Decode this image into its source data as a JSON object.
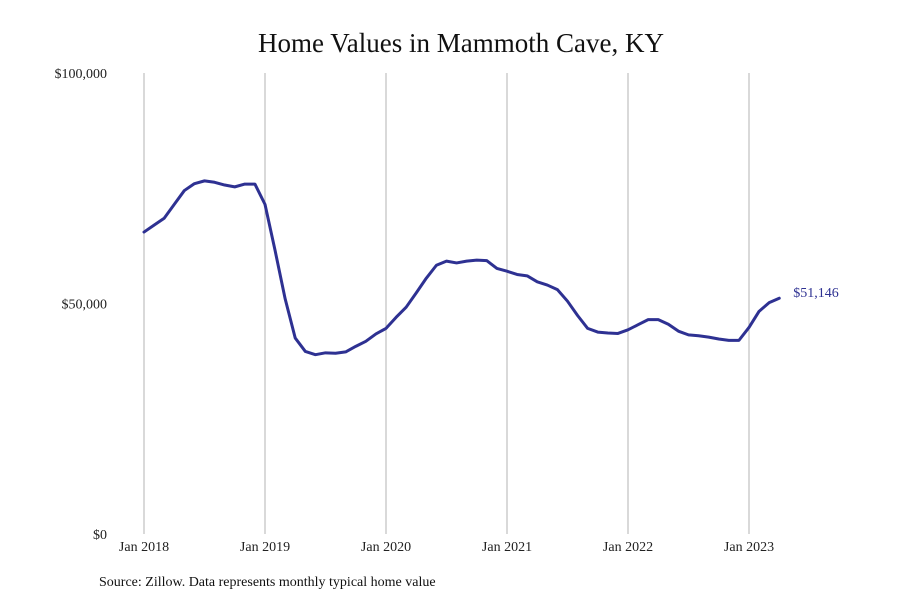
{
  "chart_data": {
    "type": "line",
    "title": "Home Values in Mammoth Cave, KY",
    "source_note": "Source: Zillow. Data represents monthly typical home value",
    "ylim": [
      0,
      100000
    ],
    "yticks": [
      0,
      50000,
      100000
    ],
    "ytick_labels": [
      "$0",
      "$50,000",
      "$100,000"
    ],
    "xlim": [
      "2018-01",
      "2023-12"
    ],
    "xticks": [
      "2018-01",
      "2019-01",
      "2020-01",
      "2021-01",
      "2022-01",
      "2023-01"
    ],
    "xtick_labels": [
      "Jan 2018",
      "Jan 2019",
      "Jan 2020",
      "Jan 2021",
      "Jan 2022",
      "Jan 2023"
    ],
    "grid": "vertical",
    "legend": "none",
    "series": [
      {
        "color": "#2e3192",
        "end_label": "$51,146",
        "x": [
          "2018-01",
          "2018-02",
          "2018-03",
          "2018-04",
          "2018-05",
          "2018-06",
          "2018-07",
          "2018-08",
          "2018-09",
          "2018-10",
          "2018-11",
          "2018-12",
          "2019-01",
          "2019-02",
          "2019-03",
          "2019-04",
          "2019-05",
          "2019-06",
          "2019-07",
          "2019-08",
          "2019-09",
          "2019-10",
          "2019-11",
          "2019-12",
          "2020-01",
          "2020-02",
          "2020-03",
          "2020-04",
          "2020-05",
          "2020-06",
          "2020-07",
          "2020-08",
          "2020-09",
          "2020-10",
          "2020-11",
          "2020-12",
          "2021-01",
          "2021-02",
          "2021-03",
          "2021-04",
          "2021-05",
          "2021-06",
          "2021-07",
          "2021-08",
          "2021-09",
          "2021-10",
          "2021-11",
          "2021-12",
          "2022-01",
          "2022-02",
          "2022-03",
          "2022-04",
          "2022-05",
          "2022-06",
          "2022-07",
          "2022-08",
          "2022-09",
          "2022-10",
          "2022-11",
          "2022-12",
          "2023-01",
          "2023-02",
          "2023-03",
          "2023-04"
        ],
        "values": [
          65500,
          67000,
          68500,
          71500,
          74500,
          76000,
          76600,
          76300,
          75700,
          75300,
          75900,
          75900,
          71500,
          61500,
          51000,
          42500,
          39600,
          38900,
          39300,
          39200,
          39500,
          40700,
          41800,
          43400,
          44600,
          47000,
          49200,
          52300,
          55500,
          58300,
          59200,
          58800,
          59200,
          59400,
          59300,
          57600,
          57000,
          56300,
          56000,
          54700,
          54000,
          53000,
          50500,
          47400,
          44600,
          43800,
          43600,
          43500,
          44300,
          45400,
          46500,
          46500,
          45500,
          44000,
          43200,
          43000,
          42700,
          42300,
          42000,
          42000,
          44800,
          48300,
          50200,
          51146
        ]
      }
    ]
  }
}
